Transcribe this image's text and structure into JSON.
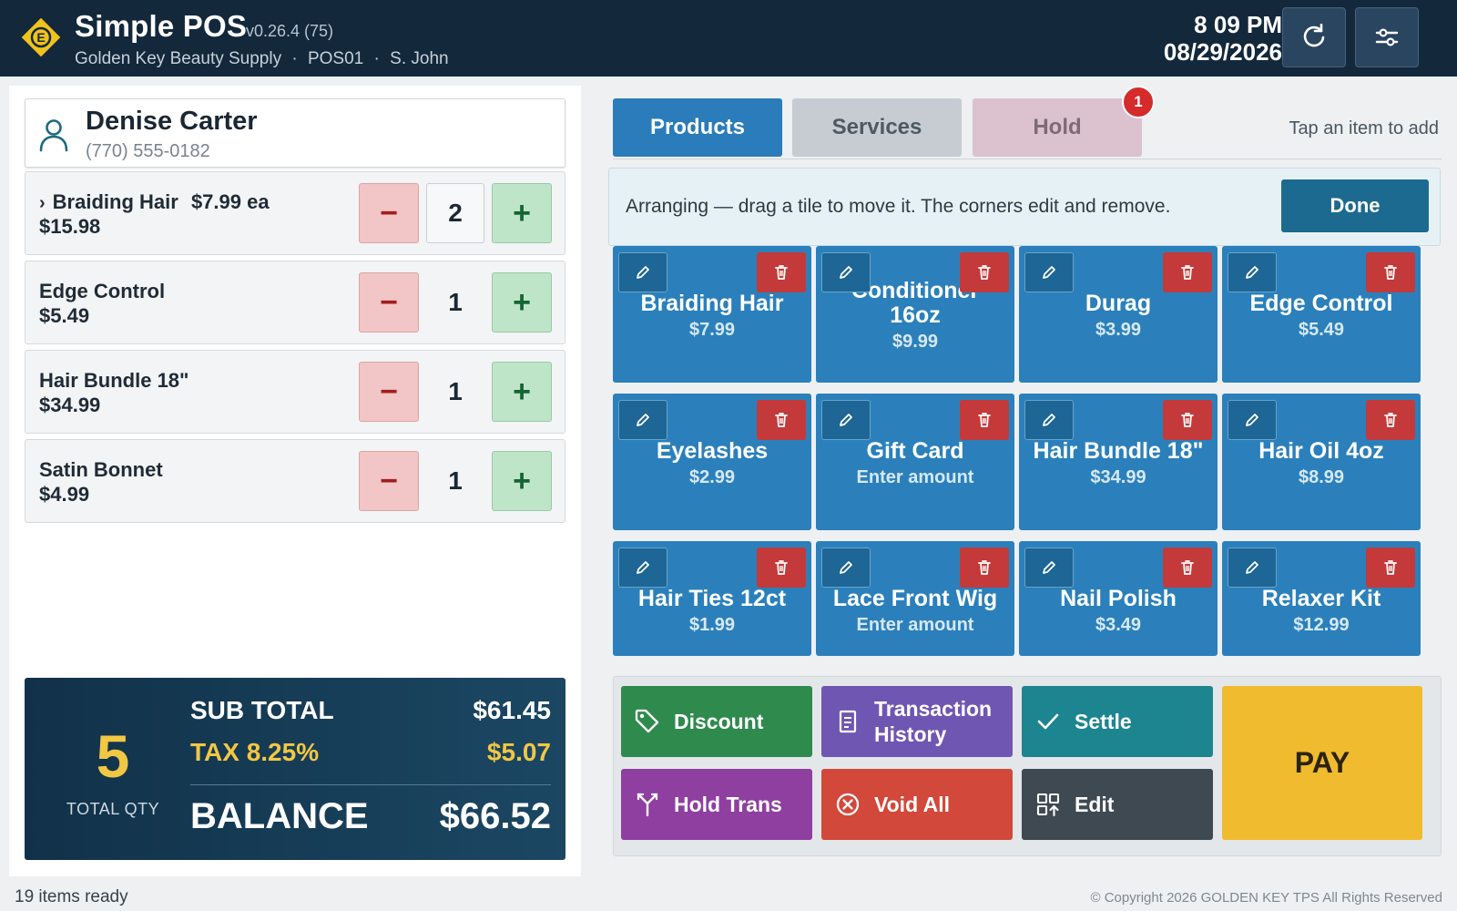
{
  "header": {
    "title": "Simple POS",
    "version": "v0.26.4 (75)",
    "store": "Golden Key Beauty Supply",
    "terminal": "POS01",
    "cashier": "S. John",
    "separator": "·",
    "time": "8 09 PM",
    "date": "08/29/2026",
    "logo_letter": "E"
  },
  "customer": {
    "name": "Denise Carter",
    "phone": "(770) 555-0182"
  },
  "cart": {
    "items": [
      {
        "name": "Braiding Hair",
        "chevron": "›",
        "unit": "$7.99 ea",
        "total": "$15.98",
        "qty": "2",
        "minus": "−",
        "plus": "+"
      },
      {
        "name": "Edge Control",
        "total": "$5.49",
        "qty": "1",
        "minus": "−",
        "plus": "+"
      },
      {
        "name": "Hair Bundle 18\"",
        "total": "$34.99",
        "qty": "1",
        "minus": "−",
        "plus": "+"
      },
      {
        "name": "Satin Bonnet",
        "total": "$4.99",
        "qty": "1",
        "minus": "−",
        "plus": "+"
      }
    ]
  },
  "totals": {
    "total_qty": "5",
    "total_qty_label": "TOTAL QTY",
    "subtotal_label": "SUB TOTAL",
    "subtotal": "$61.45",
    "tax_label": "TAX 8.25%",
    "tax": "$5.07",
    "balance_label": "BALANCE",
    "balance": "$66.52"
  },
  "tabs": {
    "products": "Products",
    "services": "Services",
    "hold": "Hold",
    "hold_badge": "1",
    "hint": "Tap an item to add"
  },
  "arrange": {
    "message": "Arranging — drag a tile to move it. The corners edit and remove.",
    "done": "Done"
  },
  "products": [
    {
      "name": "Braiding Hair",
      "price": "$7.99"
    },
    {
      "name": "Conditioner 16oz",
      "price": "$9.99"
    },
    {
      "name": "Durag",
      "price": "$3.99"
    },
    {
      "name": "Edge Control",
      "price": "$5.49"
    },
    {
      "name": "Eyelashes",
      "price": "$2.99"
    },
    {
      "name": "Gift Card",
      "price": "Enter amount"
    },
    {
      "name": "Hair Bundle 18\"",
      "price": "$34.99"
    },
    {
      "name": "Hair Oil 4oz",
      "price": "$8.99"
    },
    {
      "name": "Hair Ties 12ct",
      "price": "$1.99"
    },
    {
      "name": "Lace Front Wig",
      "price": "Enter amount"
    },
    {
      "name": "Nail Polish",
      "price": "$3.49"
    },
    {
      "name": "Relaxer Kit",
      "price": "$12.99"
    }
  ],
  "actions": {
    "discount": "Discount",
    "history": "Transaction History",
    "settle": "Settle",
    "hold_trans": "Hold Trans",
    "void_all": "Void All",
    "edit": "Edit",
    "pay": "PAY"
  },
  "footer": {
    "status": "19 items ready",
    "copyright": "© Copyright 2026 GOLDEN KEY TPS All Rights Reserved"
  },
  "colors": {
    "header_bg": "#13283b",
    "tile_blue": "#2b80bb",
    "pay_yellow": "#f0bb2e",
    "accent_gold": "#f2c744"
  }
}
